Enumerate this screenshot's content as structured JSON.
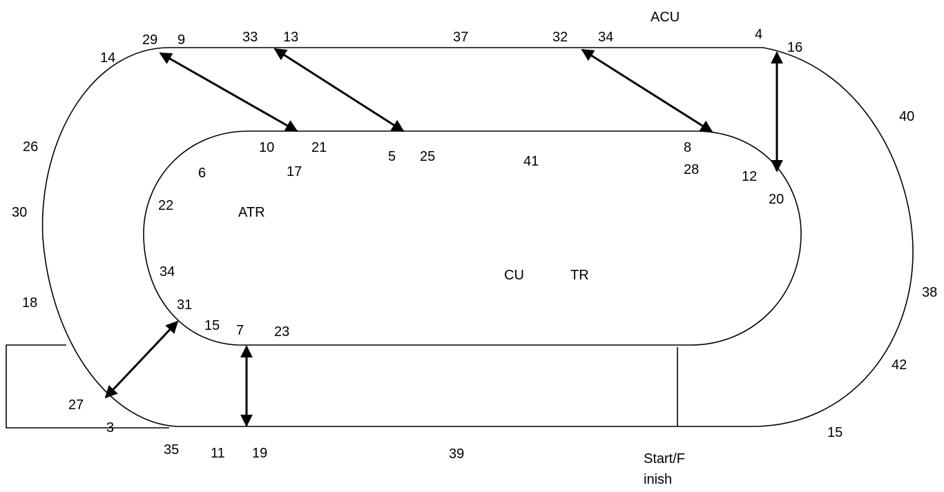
{
  "diagram": {
    "zones": {
      "acu": "ACU",
      "atr": "ATR",
      "cu": "CU",
      "tr": "TR"
    },
    "start_finish": [
      "Start/F",
      "inish"
    ],
    "numbers": {
      "n29": "29",
      "n9": "9",
      "n33": "33",
      "n13": "13",
      "n37": "37",
      "n32": "32",
      "n34a": "34",
      "n4": "4",
      "n16": "16",
      "n14": "14",
      "n40": "40",
      "n26": "26",
      "n10": "10",
      "n21": "21",
      "n5": "5",
      "n25": "25",
      "n41": "41",
      "n8": "8",
      "n28": "28",
      "n6": "6",
      "n17": "17",
      "n12": "12",
      "n20": "20",
      "n22": "22",
      "n30": "30",
      "n34b": "34",
      "n38": "38",
      "n18": "18",
      "n31": "31",
      "n15a": "15",
      "n7": "7",
      "n23": "23",
      "n42": "42",
      "n27": "27",
      "n3": "3",
      "n15b": "15",
      "n35": "35",
      "n11": "11",
      "n19": "19",
      "n39": "39"
    }
  }
}
